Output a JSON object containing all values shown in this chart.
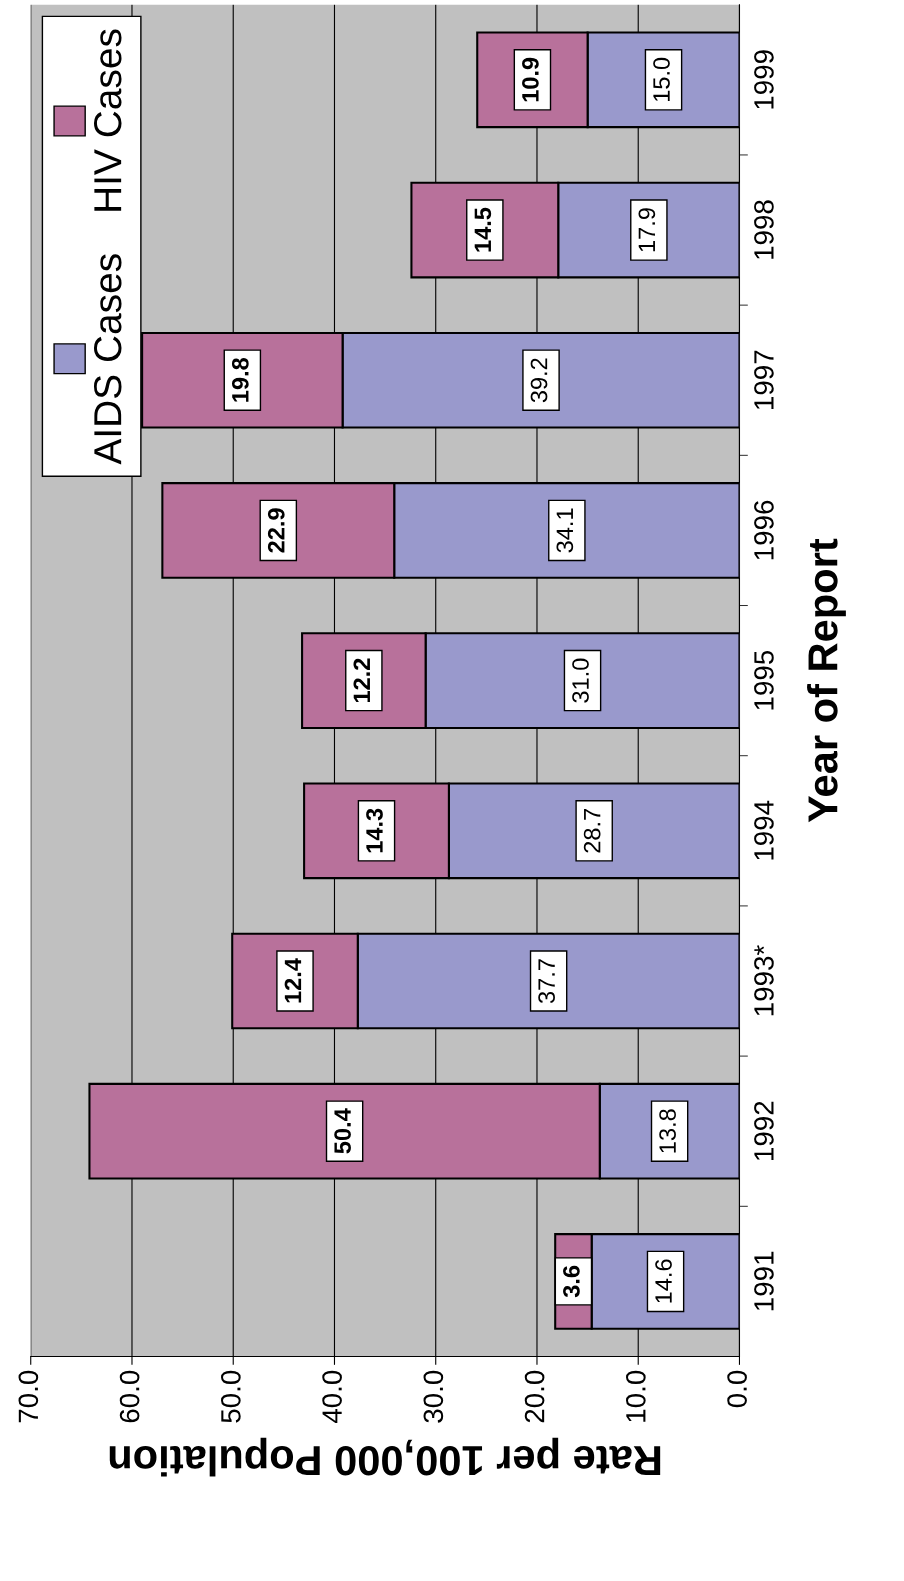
{
  "chart_data": {
    "type": "bar",
    "orientation": "horizontal",
    "stacked": true,
    "categories": [
      "1999",
      "1998",
      "1997",
      "1996",
      "1995",
      "1994",
      "1993*",
      "1992",
      "1991"
    ],
    "series": [
      {
        "name": "AIDS Cases",
        "color": "#9999cc",
        "values": [
          15.0,
          17.9,
          39.2,
          34.1,
          31.0,
          28.7,
          37.7,
          13.8,
          14.6
        ],
        "value_labels": [
          "15.0",
          "17.9",
          "39.2",
          "34.1",
          "31.0",
          "28.7",
          "37.7",
          "13.8",
          "14.6"
        ]
      },
      {
        "name": "HIV Cases",
        "color": "#b8719b",
        "values": [
          10.9,
          14.5,
          19.8,
          22.9,
          12.2,
          14.3,
          12.4,
          50.4,
          3.6
        ],
        "value_labels": [
          "10.9",
          "14.5",
          "19.8",
          "22.9",
          "12.2",
          "14.3",
          "12.4",
          "50.4",
          "3.6"
        ]
      }
    ],
    "xlabel": "Rate per 100,000 Population",
    "ylabel": "Year of Report",
    "xlim": [
      70,
      0
    ],
    "xticks": [
      {
        "value": 0,
        "label": "0.0"
      },
      {
        "value": 10,
        "label": "10.0"
      },
      {
        "value": 20,
        "label": "20.0"
      },
      {
        "value": 30,
        "label": "30.0"
      },
      {
        "value": 40,
        "label": "40.0"
      },
      {
        "value": 50,
        "label": "50.0"
      },
      {
        "value": 60,
        "label": "60.0"
      },
      {
        "value": 70,
        "label": "70.0"
      }
    ],
    "grid": "x",
    "legend": "top left"
  }
}
